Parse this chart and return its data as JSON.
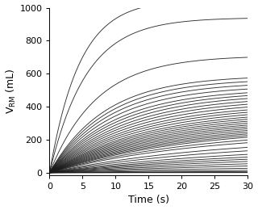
{
  "title": "",
  "xlabel": "Time (s)",
  "ylabel": "$\\mathrm{V_{RM}}$ (mL)",
  "xlim": [
    0,
    30
  ],
  "ylim": [
    -15,
    1000
  ],
  "xticks": [
    0,
    5,
    10,
    15,
    20,
    25,
    30
  ],
  "yticks": [
    0,
    200,
    400,
    600,
    800,
    1000
  ],
  "background_color": "#ffffff",
  "line_color": "#1a1a1a",
  "linewidth": 0.65,
  "final_values": [
    1050,
    940,
    710,
    590,
    570,
    550,
    530,
    510,
    495,
    480,
    465,
    450,
    435,
    420,
    408,
    396,
    384,
    373,
    362,
    352,
    342,
    333,
    324,
    315,
    306,
    298,
    290,
    282,
    265,
    248,
    220,
    195,
    168,
    148,
    132,
    115,
    95,
    75,
    52,
    32,
    18,
    8,
    3
  ],
  "rise_speeds": [
    0.22,
    0.18,
    0.14,
    0.12,
    0.115,
    0.11,
    0.105,
    0.1,
    0.096,
    0.092,
    0.088,
    0.085,
    0.082,
    0.079,
    0.076,
    0.073,
    0.07,
    0.068,
    0.066,
    0.064,
    0.062,
    0.06,
    0.058,
    0.056,
    0.054,
    0.052,
    0.05,
    0.048,
    0.046,
    0.044,
    0.04,
    0.038,
    0.036,
    0.034,
    0.032,
    0.03,
    0.028,
    0.026,
    0.024,
    0.02,
    0.016,
    0.012,
    0.008
  ]
}
